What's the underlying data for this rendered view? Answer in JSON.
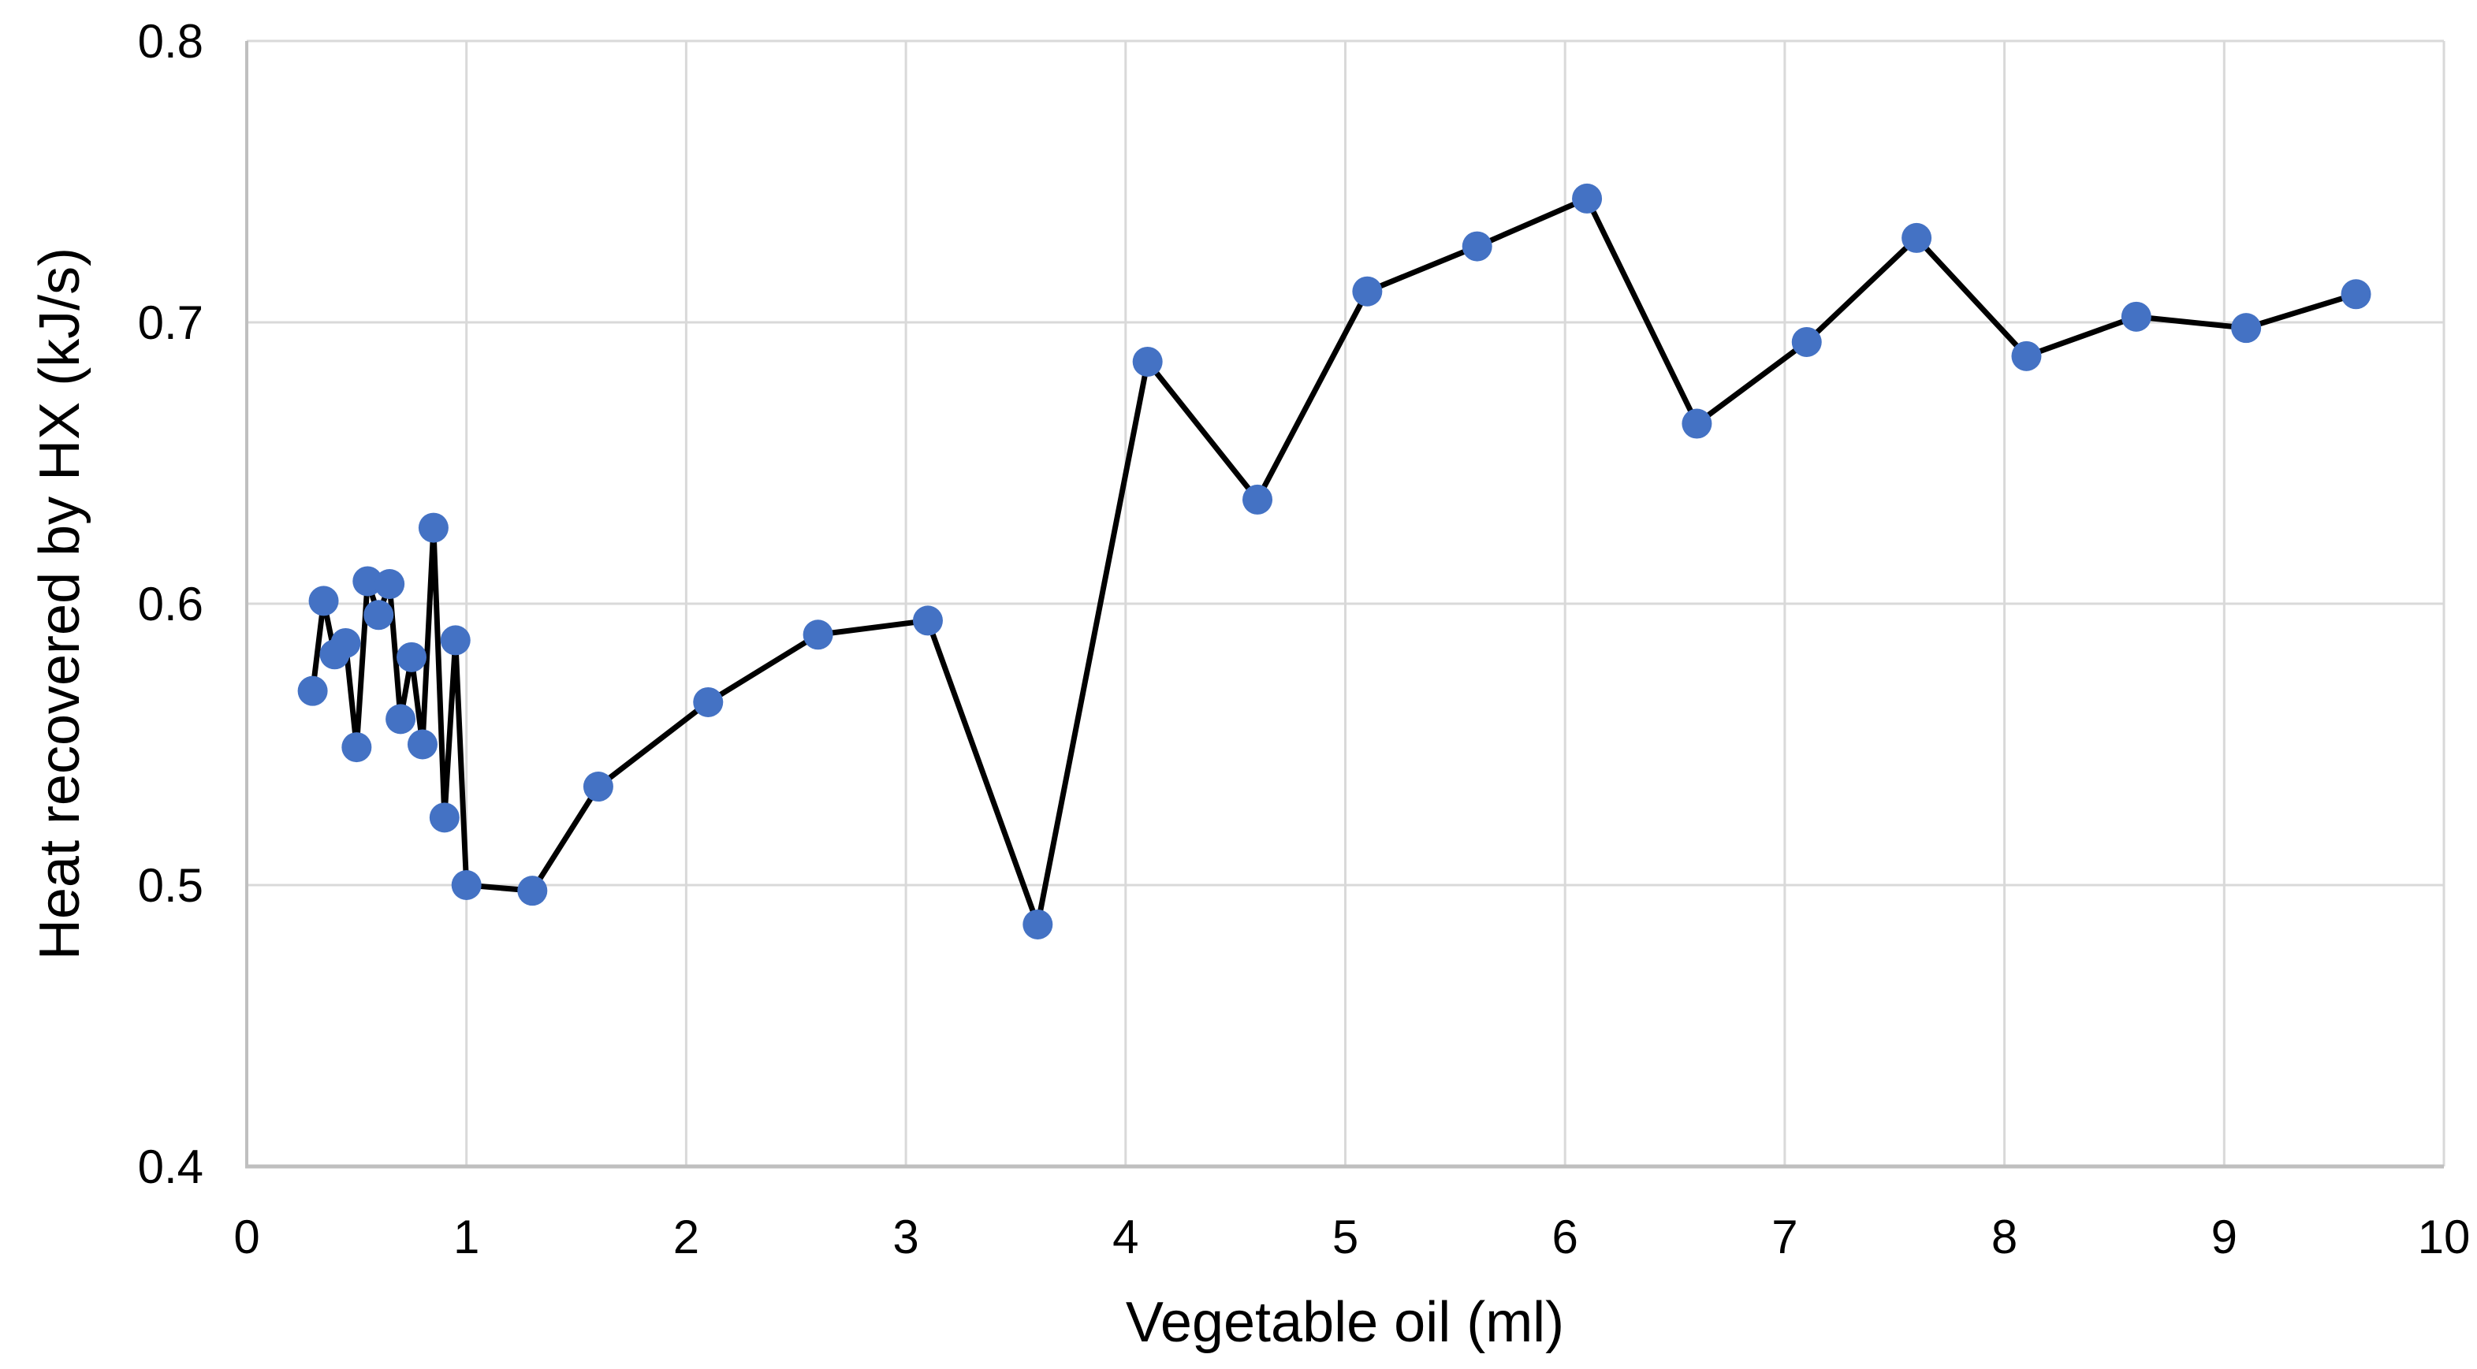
{
  "chart_data": {
    "type": "line",
    "title": "",
    "xlabel": "Vegetable oil (ml)",
    "ylabel": "Heat recovered by HX (kJ/s)",
    "xlim": [
      0,
      10
    ],
    "ylim": [
      0.4,
      0.8
    ],
    "x_ticks": [
      0,
      1,
      2,
      3,
      4,
      5,
      6,
      7,
      8,
      9,
      10
    ],
    "x_tick_labels": [
      "0",
      "1",
      "2",
      "3",
      "4",
      "5",
      "6",
      "7",
      "8",
      "9",
      "10"
    ],
    "y_ticks": [
      0.4,
      0.5,
      0.6,
      0.7,
      0.8
    ],
    "y_tick_labels": [
      "0.4",
      "0.5",
      "0.6",
      "0.7",
      "0.8"
    ],
    "grid": true,
    "legend": false,
    "colors": {
      "marker": "#4472C4",
      "line": "#000000",
      "gridline": "#D9D9D9",
      "axis_line": "#BFBFBF",
      "text": "#000000",
      "background": "#FFFFFF"
    },
    "series": [
      {
        "name": "Heat recovered by HX",
        "x": [
          0.3,
          0.35,
          0.4,
          0.45,
          0.5,
          0.55,
          0.6,
          0.65,
          0.7,
          0.75,
          0.8,
          0.85,
          0.9,
          0.95,
          1.0,
          1.3,
          1.6,
          2.1,
          2.6,
          3.1,
          3.6,
          4.1,
          4.6,
          5.1,
          5.6,
          6.1,
          6.6,
          7.1,
          7.6,
          8.1,
          8.6,
          9.1,
          9.6
        ],
        "y": [
          0.569,
          0.601,
          0.582,
          0.586,
          0.549,
          0.608,
          0.596,
          0.607,
          0.559,
          0.581,
          0.55,
          0.627,
          0.524,
          0.587,
          0.5,
          0.498,
          0.535,
          0.565,
          0.589,
          0.594,
          0.486,
          0.686,
          0.637,
          0.711,
          0.727,
          0.744,
          0.664,
          0.693,
          0.73,
          0.688,
          0.702,
          0.698,
          0.71
        ]
      }
    ]
  }
}
